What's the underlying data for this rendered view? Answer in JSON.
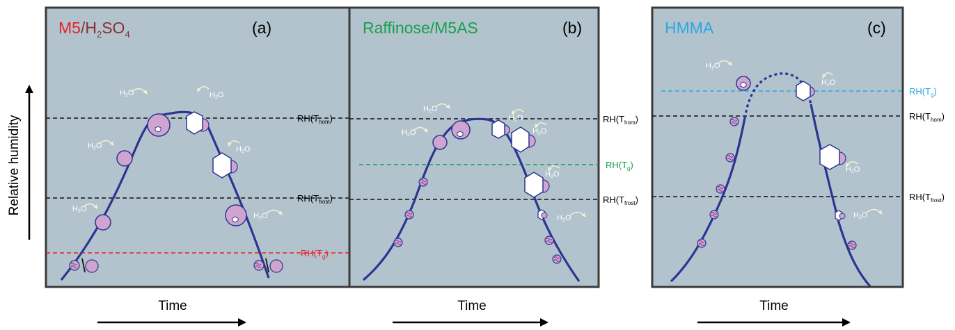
{
  "y_axis_label": "Relative humidity",
  "colors": {
    "panel_bg": "#b3c3ce",
    "panel_border": "#3a3a3a",
    "trajectory": "#2b3590",
    "particle_fill": "#cfa5cf",
    "arrow_curve": "#f4f1cf",
    "red": "#e8202a",
    "dark_red": "#8b3030",
    "green": "#17a04a",
    "blue": "#2aa8e0"
  },
  "panels": [
    {
      "id": "a",
      "title_part1": "M5",
      "title_sep": "/",
      "title_part2_main": "H",
      "title_part2_sub1": "2",
      "title_part2_mid": "SO",
      "title_part2_sub2": "4",
      "letter": "(a)",
      "x_axis_label": "Time",
      "lines": [
        {
          "main": "RH(T",
          "sub": "hom",
          "close": ")"
        },
        {
          "main": "RH(T",
          "sub": "frost",
          "close": ")"
        },
        {
          "main": "RH(T",
          "sub": "g",
          "close": ")"
        }
      ]
    },
    {
      "id": "b",
      "title": "Raffinose/M5AS",
      "letter": "(b)",
      "x_axis_label": "Time",
      "lines": [
        {
          "main": "RH(T",
          "sub": "hom",
          "close": ")"
        },
        {
          "main": "RH(T",
          "sub": "g",
          "close": ")"
        },
        {
          "main": "RH(T",
          "sub": "frost",
          "close": ")"
        }
      ]
    },
    {
      "id": "c",
      "title": "HMMA",
      "letter": "(c)",
      "x_axis_label": "Time",
      "lines": [
        {
          "main": "RH(T",
          "sub": "g",
          "close": ")"
        },
        {
          "main": "RH(T",
          "sub": "hom",
          "close": ")"
        },
        {
          "main": "RH(T",
          "sub": "frost",
          "close": ")"
        }
      ]
    }
  ],
  "water": {
    "main": "H",
    "sub": "2",
    "end": "O"
  }
}
